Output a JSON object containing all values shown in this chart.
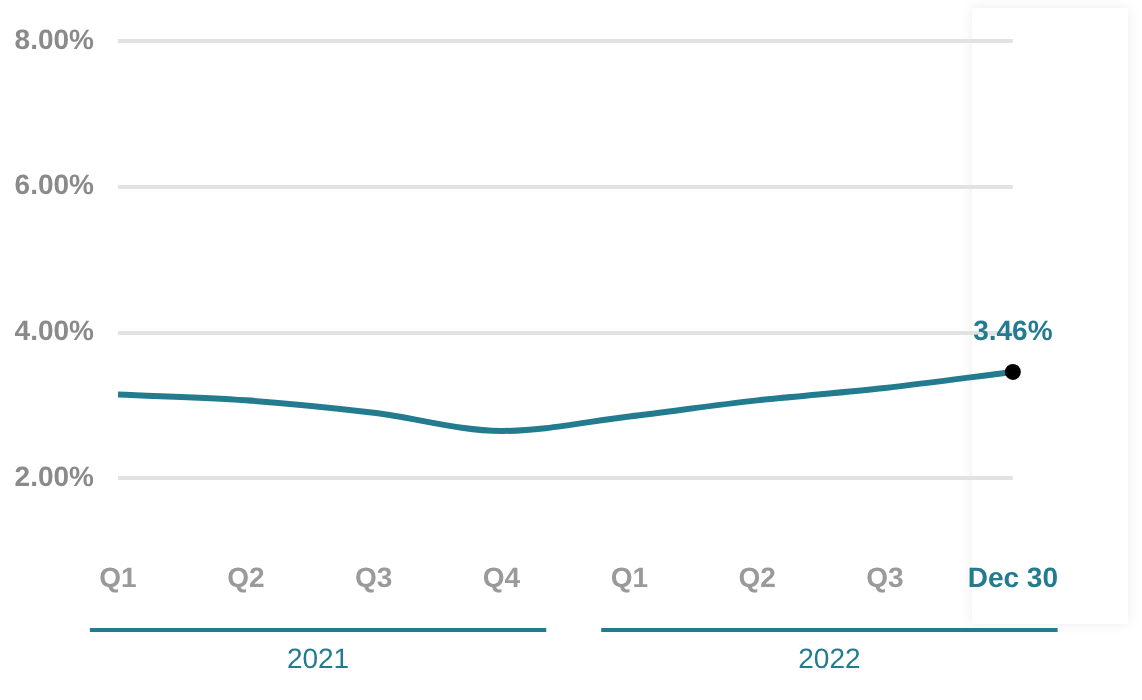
{
  "chart_data": {
    "type": "line",
    "categories": [
      "Q1",
      "Q2",
      "Q3",
      "Q4",
      "Q1",
      "Q2",
      "Q3",
      "Dec 30"
    ],
    "series": [
      {
        "color": "#237b8f",
        "values": [
          3.15,
          3.07,
          2.9,
          2.65,
          2.85,
          3.07,
          3.24,
          3.46
        ],
        "value_labels": [
          null,
          null,
          null,
          null,
          null,
          null,
          null,
          "3.46%"
        ]
      }
    ],
    "ylim": [
      2,
      8
    ],
    "yticks": [
      {
        "value": 2,
        "label": "2.00%"
      },
      {
        "value": 4,
        "label": "4.00%"
      },
      {
        "value": 6,
        "label": "6.00%"
      },
      {
        "value": 8,
        "label": "8.00%"
      }
    ],
    "grid": "y",
    "legend": false,
    "annotations": [
      "2021",
      "2022"
    ]
  }
}
